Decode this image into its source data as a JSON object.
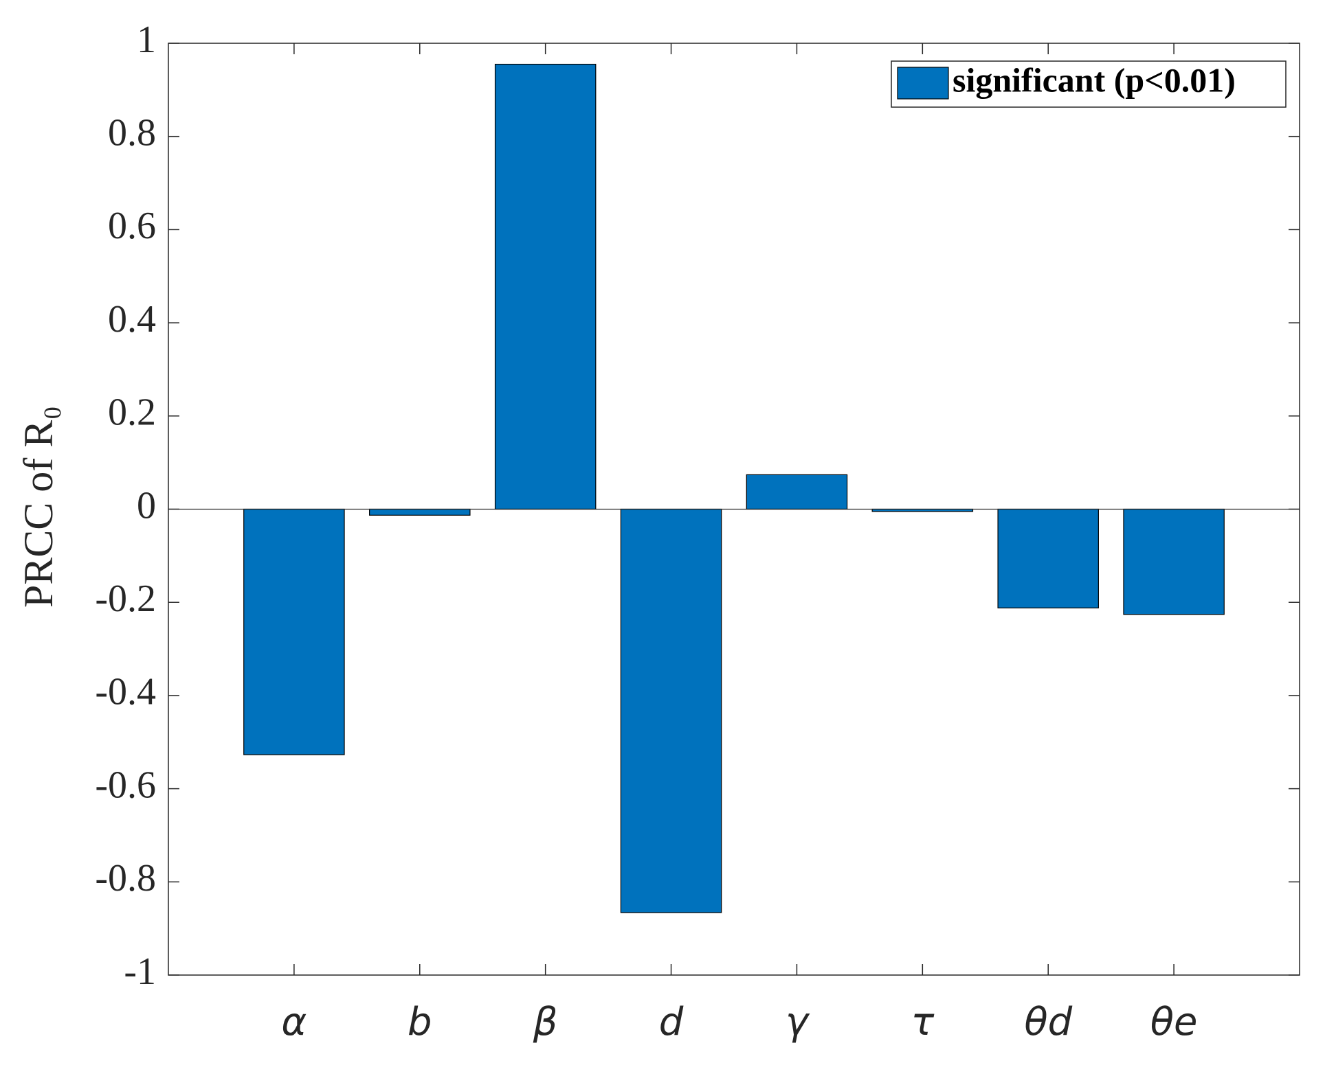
{
  "chart_data": {
    "type": "bar",
    "ylabel": "PRCC of R₀",
    "categories": [
      "α",
      "b",
      "β",
      "d",
      "γ",
      "τ",
      "θd",
      "θe"
    ],
    "series": [
      {
        "name": "significant (p<0.01)",
        "color": "#0072bd",
        "values": [
          -0.527,
          -0.013,
          0.955,
          -0.866,
          0.074,
          -0.005,
          -0.212,
          -0.226
        ]
      }
    ],
    "ylim": [
      -1,
      1
    ],
    "yticks": [
      -1,
      -0.8,
      -0.6,
      -0.4,
      -0.2,
      0,
      0.2,
      0.4,
      0.6,
      0.8,
      1
    ],
    "legend": "upper right",
    "grid": false
  }
}
